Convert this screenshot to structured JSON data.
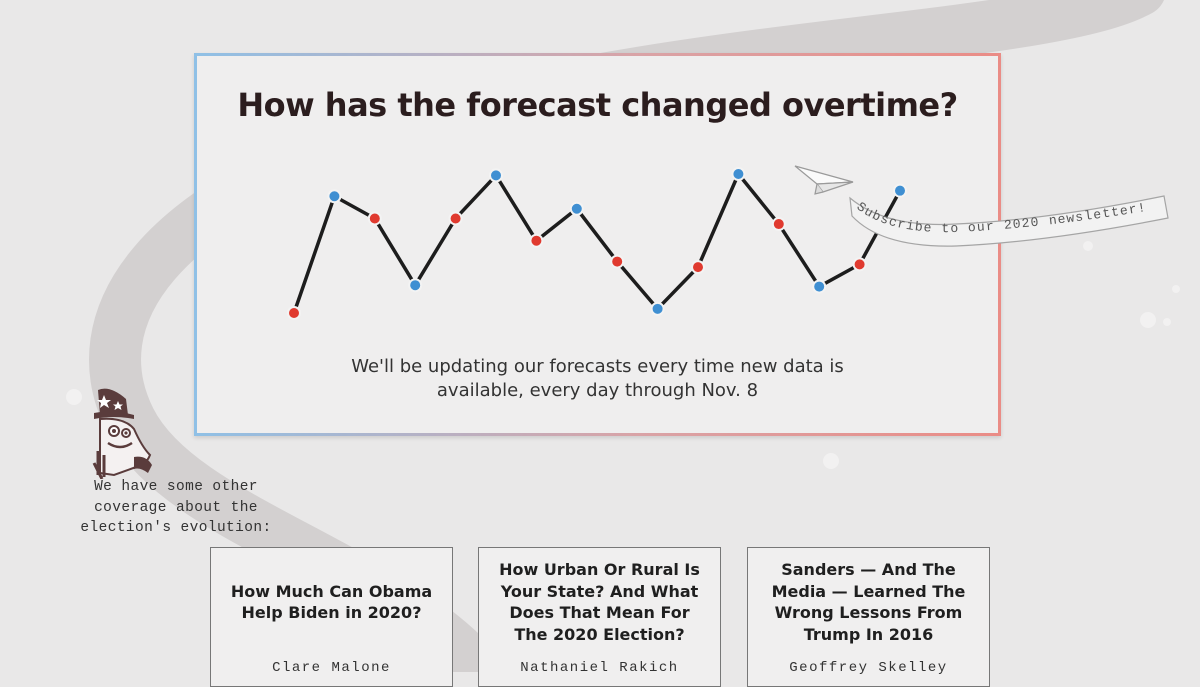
{
  "forecast_panel": {
    "title": "How has the forecast changed overtime?",
    "description": "We'll be updating our forecasts every time new data is available, every day through Nov. 8",
    "accent_colors": {
      "blue": "#3f8fd2",
      "red": "#e03a2f",
      "line": "#1d1d1d"
    }
  },
  "chart_data": {
    "type": "line",
    "decorative": true,
    "points": [
      {
        "x": 1,
        "y": 0.0,
        "color": "red"
      },
      {
        "x": 2,
        "y": 0.84,
        "color": "blue"
      },
      {
        "x": 3,
        "y": 0.68,
        "color": "red"
      },
      {
        "x": 4,
        "y": 0.2,
        "color": "blue"
      },
      {
        "x": 5,
        "y": 0.68,
        "color": "red"
      },
      {
        "x": 6,
        "y": 0.99,
        "color": "blue"
      },
      {
        "x": 7,
        "y": 0.52,
        "color": "red"
      },
      {
        "x": 8,
        "y": 0.75,
        "color": "blue"
      },
      {
        "x": 9,
        "y": 0.37,
        "color": "red"
      },
      {
        "x": 10,
        "y": 0.03,
        "color": "blue"
      },
      {
        "x": 11,
        "y": 0.33,
        "color": "red"
      },
      {
        "x": 12,
        "y": 1.0,
        "color": "blue"
      },
      {
        "x": 13,
        "y": 0.64,
        "color": "red"
      },
      {
        "x": 14,
        "y": 0.19,
        "color": "blue"
      },
      {
        "x": 15,
        "y": 0.35,
        "color": "red"
      },
      {
        "x": 16,
        "y": 0.88,
        "color": "blue"
      }
    ]
  },
  "newsletter": {
    "label": "Subscribe to our 2020 newsletter!",
    "icon": "paper-plane-icon"
  },
  "coverage": {
    "intro": "We have some other coverage about the election's evolution:",
    "mascot_icon": "mascot-icon",
    "articles": [
      {
        "title": "How Much Can Obama Help Biden in 2020?",
        "author": "Clare Malone"
      },
      {
        "title": "How Urban Or Rural Is Your State? And What Does That Mean For The 2020 Election?",
        "author": "Nathaniel Rakich"
      },
      {
        "title": "Sanders — And The Media — Learned The Wrong Lessons From Trump In 2016",
        "author": "Geoffrey Skelley"
      }
    ]
  }
}
